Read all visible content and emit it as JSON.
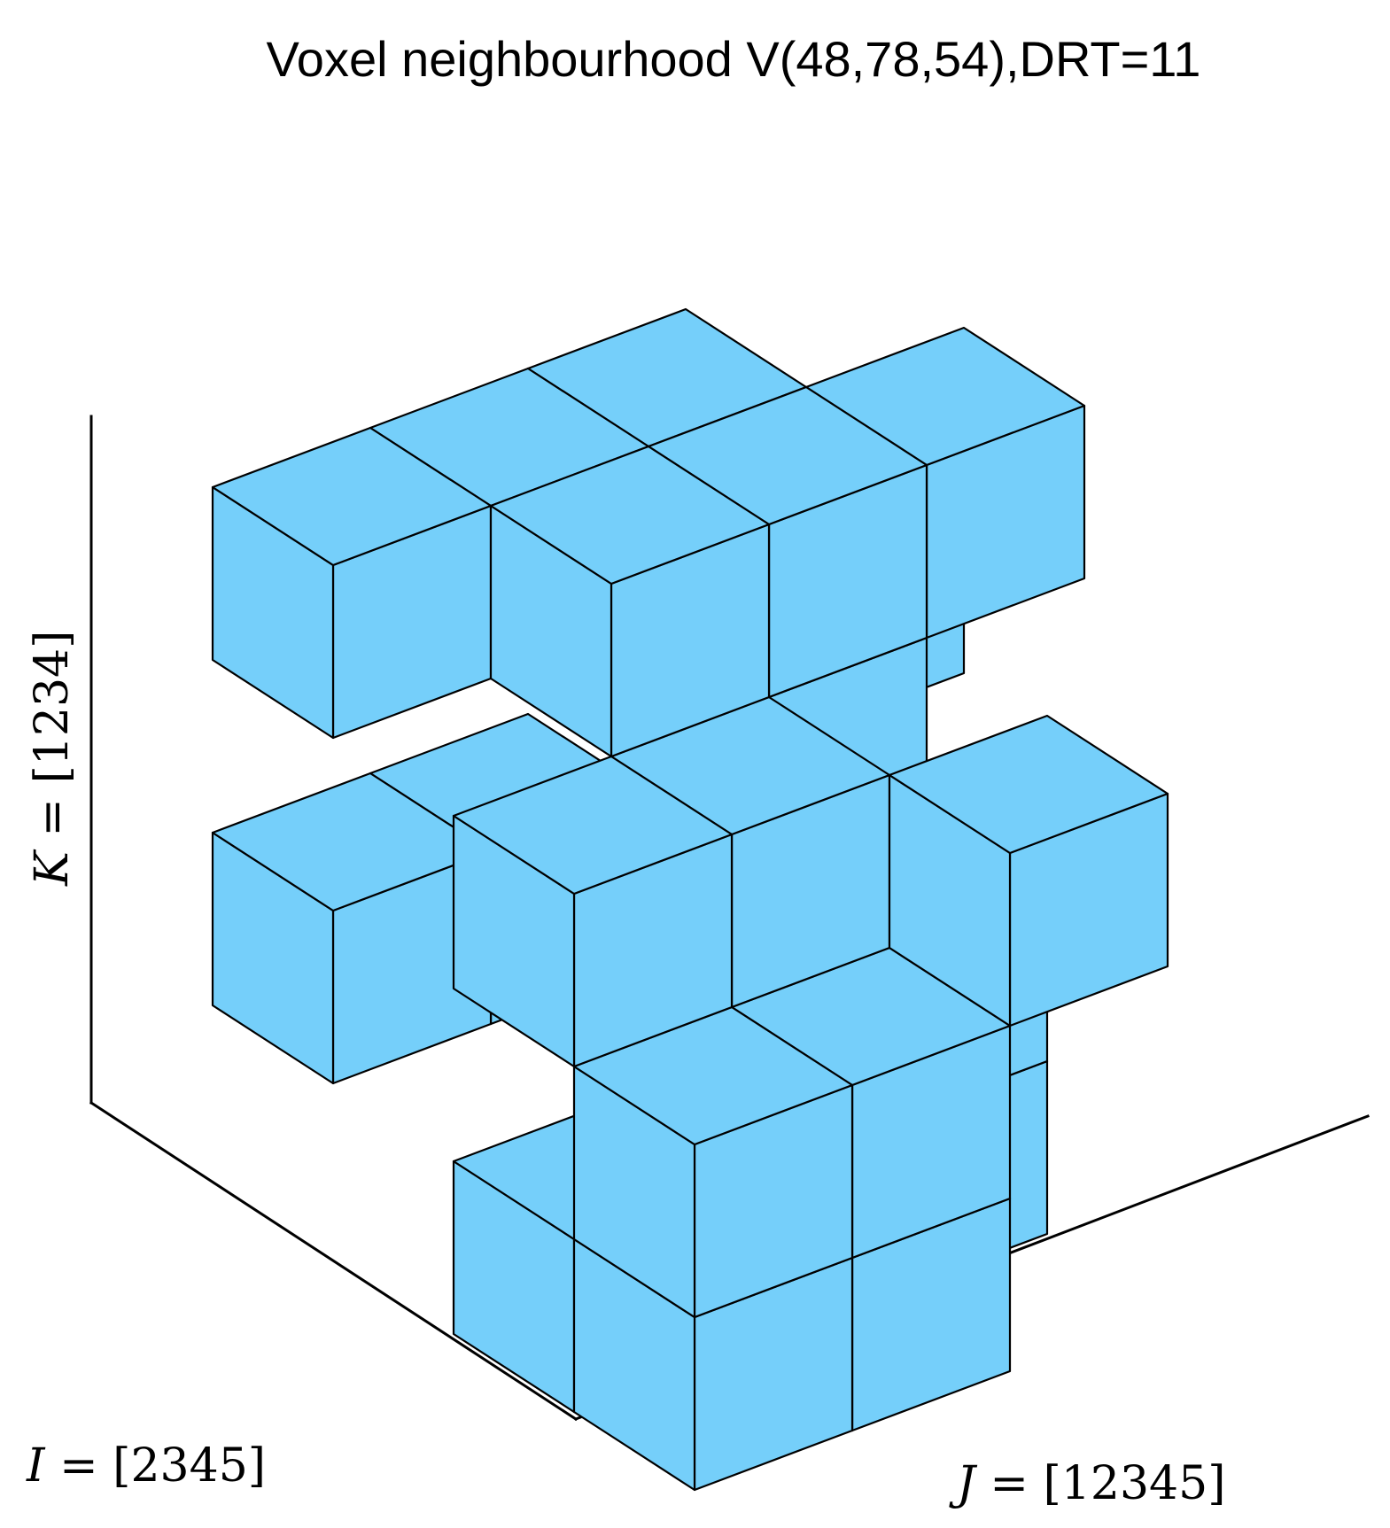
{
  "figure": {
    "title": "Voxel neighbourhood V(48,78,54),DRT=11",
    "axes": {
      "i": {
        "symbol": "I",
        "rest": " = [2345]"
      },
      "j": {
        "symbol": "J",
        "rest": " = [12345]"
      },
      "k": {
        "symbol": "K",
        "rest": " = [1234]"
      }
    },
    "voxel_color": "#75CFFA",
    "edge_color": "#000000",
    "voxels": [
      {
        "i": 0,
        "j": 0,
        "k": 1
      },
      {
        "i": 0,
        "j": 1,
        "k": 1
      },
      {
        "i": 1,
        "j": 2,
        "k": 1
      },
      {
        "i": 0,
        "j": 3,
        "k": 2
      },
      {
        "i": 1,
        "j": 2,
        "k": 2
      },
      {
        "i": 2,
        "j": 0,
        "k": 0
      },
      {
        "i": 3,
        "j": 0,
        "k": 0
      },
      {
        "i": 3,
        "j": 1,
        "k": 0
      },
      {
        "i": 2,
        "j": 2,
        "k": 0
      },
      {
        "i": 2,
        "j": 2,
        "k": 1
      },
      {
        "i": 3,
        "j": 0,
        "k": 1
      },
      {
        "i": 3,
        "j": 1,
        "k": 1
      },
      {
        "i": 2,
        "j": 0,
        "k": 2
      },
      {
        "i": 2,
        "j": 1,
        "k": 2
      },
      {
        "i": 3,
        "j": 2,
        "k": 2
      },
      {
        "i": 0,
        "j": 0,
        "k": 3
      },
      {
        "i": 0,
        "j": 1,
        "k": 3
      },
      {
        "i": 1,
        "j": 1,
        "k": 3
      },
      {
        "i": 1,
        "j": 2,
        "k": 3
      },
      {
        "i": 1,
        "j": 3,
        "k": 3
      },
      {
        "i": 0,
        "j": 2,
        "k": 3
      }
    ]
  }
}
